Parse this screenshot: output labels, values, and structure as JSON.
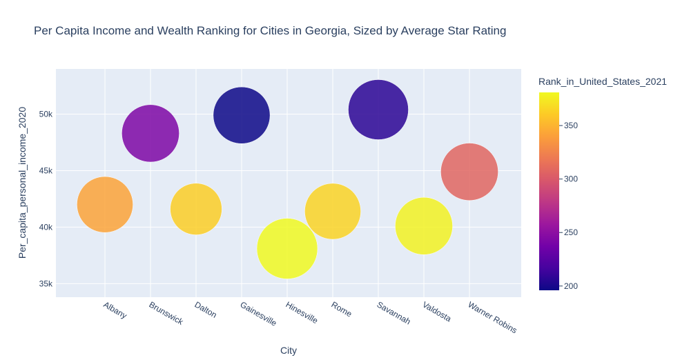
{
  "chart_data": {
    "type": "scatter",
    "title": "Per Capita Income and Wealth Ranking for Cities in Georgia, Sized by Average Star Rating",
    "xlabel": "City",
    "ylabel": "Per_capita_personal_income_2020",
    "colorbar_title": "Rank_in_United_States_2021",
    "categories": [
      "Albany",
      "Brunswick",
      "Dalton",
      "Gainesville",
      "Hinesville",
      "Rome",
      "Savannah",
      "Valdosta",
      "Warner Robins"
    ],
    "y_values": [
      42000,
      48300,
      41600,
      49900,
      38100,
      41400,
      50400,
      40100,
      44900
    ],
    "color_values": [
      342,
      243,
      362,
      196,
      381,
      365,
      207,
      378,
      308
    ],
    "size_values": [
      4.0,
      4.2,
      3.4,
      4.1,
      4.7,
      4.0,
      4.6,
      4.2,
      4.2
    ],
    "ylim": [
      33800,
      54000
    ],
    "yticks": [
      35000,
      40000,
      45000,
      50000
    ],
    "ytick_labels": [
      "35k",
      "40k",
      "45k",
      "50k"
    ],
    "color_range": [
      196,
      381
    ],
    "colorbar_ticks": [
      200,
      250,
      300,
      350
    ],
    "colorbar_tick_labels": [
      "200",
      "250",
      "300",
      "350"
    ],
    "colorscale": "plasma",
    "grid": true,
    "legend": "colorbar right"
  }
}
